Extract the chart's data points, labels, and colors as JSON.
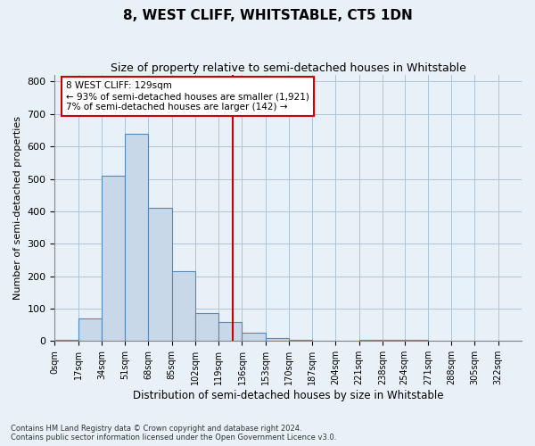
{
  "title": "8, WEST CLIFF, WHITSTABLE, CT5 1DN",
  "subtitle": "Size of property relative to semi-detached houses in Whitstable",
  "xlabel": "Distribution of semi-detached houses by size in Whitstable",
  "ylabel": "Number of semi-detached properties",
  "bar_color": "#c8d8e8",
  "bar_edge_color": "#5588bb",
  "background_color": "#e8f0f8",
  "property_line_x": 129,
  "property_line_color": "#cc0000",
  "annotation_text": "8 WEST CLIFF: 129sqm\n← 93% of semi-detached houses are smaller (1,921)\n7% of semi-detached houses are larger (142) →",
  "bin_edges": [
    0,
    17,
    34,
    51,
    68,
    85,
    102,
    119,
    136,
    153,
    170,
    187,
    204,
    221,
    238,
    254,
    271,
    288,
    305,
    322,
    339
  ],
  "bar_heights": [
    5,
    70,
    510,
    640,
    410,
    215,
    85,
    60,
    25,
    10,
    5,
    0,
    0,
    5,
    5,
    5,
    0,
    0,
    0,
    0
  ],
  "ylim": [
    0,
    820
  ],
  "yticks": [
    0,
    100,
    200,
    300,
    400,
    500,
    600,
    700,
    800
  ],
  "footnote": "Contains HM Land Registry data © Crown copyright and database right 2024.\nContains public sector information licensed under the Open Government Licence v3.0.",
  "annotation_box_color": "#ffffff",
  "annotation_box_edge": "#cc0000"
}
